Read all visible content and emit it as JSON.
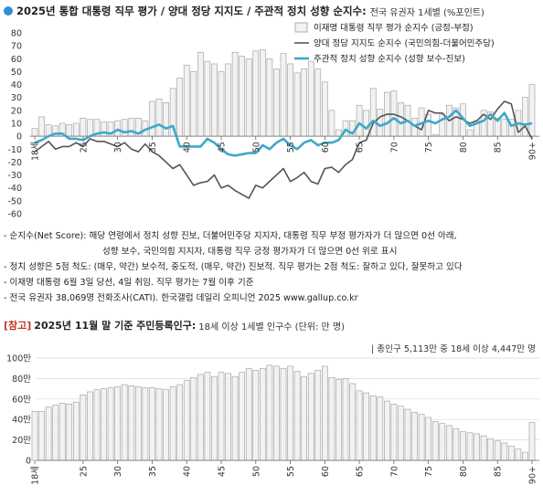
{
  "header": {
    "title": "2025년 통합 대통령 직무 평가 / 양대 정당 지지도 / 주관적 정치 성향 순지수:",
    "subtitle": "전국 유권자 1세별 (%포인트)"
  },
  "colors": {
    "bars": "#f2f2f2",
    "bar_stroke": "#9a9a9a",
    "party_line": "#555555",
    "ideology_line": "#3da9c8",
    "title_dot": "#2f8fd3",
    "ref_tag": "#c0392b"
  },
  "chart_data": [
    {
      "type": "bar",
      "title": "",
      "ylim": [
        -60,
        80
      ],
      "yticks": [
        80,
        70,
        60,
        50,
        40,
        30,
        20,
        10,
        0,
        -10,
        -20,
        -30,
        -40,
        -50,
        -60
      ],
      "xticks": [
        {
          "age": 18,
          "label": "18세"
        },
        {
          "age": 25,
          "label": "25"
        },
        {
          "age": 30,
          "label": "30"
        },
        {
          "age": 35,
          "label": "35"
        },
        {
          "age": 40,
          "label": "40"
        },
        {
          "age": 45,
          "label": "45"
        },
        {
          "age": 50,
          "label": "50"
        },
        {
          "age": 55,
          "label": "55"
        },
        {
          "age": 60,
          "label": "60"
        },
        {
          "age": 65,
          "label": "65"
        },
        {
          "age": 70,
          "label": "70"
        },
        {
          "age": 75,
          "label": "75"
        },
        {
          "age": 80,
          "label": "80"
        },
        {
          "age": 85,
          "label": "85"
        },
        {
          "age": 90,
          "label": "90+"
        }
      ],
      "ages": [
        18,
        19,
        20,
        21,
        22,
        23,
        24,
        25,
        26,
        27,
        28,
        29,
        30,
        31,
        32,
        33,
        34,
        35,
        36,
        37,
        38,
        39,
        40,
        41,
        42,
        43,
        44,
        45,
        46,
        47,
        48,
        49,
        50,
        51,
        52,
        53,
        54,
        55,
        56,
        57,
        58,
        59,
        60,
        61,
        62,
        63,
        64,
        65,
        66,
        67,
        68,
        69,
        70,
        71,
        72,
        73,
        74,
        75,
        76,
        77,
        78,
        79,
        80,
        81,
        82,
        83,
        84,
        85,
        86,
        87,
        88,
        89,
        90
      ],
      "series": [
        {
          "name": "이재명 대통령 직무 평가 순지수 (긍정-부정)",
          "kind": "bar",
          "values": [
            6,
            15,
            9,
            8,
            10,
            9,
            10,
            14,
            13,
            13,
            11,
            11,
            12,
            13,
            14,
            14,
            12,
            27,
            29,
            26,
            37,
            45,
            55,
            50,
            65,
            58,
            56,
            50,
            56,
            65,
            62,
            60,
            66,
            67,
            60,
            52,
            64,
            56,
            49,
            52,
            58,
            52,
            42,
            20,
            5,
            12,
            12,
            24,
            20,
            37,
            21,
            34,
            35,
            26,
            24,
            14,
            22,
            17,
            1,
            17,
            24,
            22,
            25,
            5,
            12,
            20,
            19,
            14,
            13,
            13,
            20,
            30,
            40
          ]
        },
        {
          "name": "양대 정당 지지도 순지수 (국민의힘-더불어민주당)",
          "kind": "line",
          "values": [
            -12,
            -8,
            -4,
            -10,
            -8,
            -8,
            -5,
            -8,
            -2,
            -4,
            -4,
            -6,
            -8,
            -5,
            -10,
            -12,
            -6,
            -12,
            -15,
            -20,
            -25,
            -22,
            -30,
            -38,
            -36,
            -35,
            -30,
            -40,
            -38,
            -42,
            -45,
            -48,
            -38,
            -40,
            -35,
            -30,
            -25,
            -35,
            -32,
            -28,
            -35,
            -37,
            -25,
            -24,
            -28,
            -22,
            -18,
            -5,
            -3,
            10,
            15,
            17,
            17,
            15,
            12,
            8,
            5,
            20,
            18,
            18,
            12,
            15,
            13,
            10,
            12,
            17,
            13,
            21,
            27,
            25,
            3,
            8,
            -2
          ]
        },
        {
          "name": "주관적 정치 성향 순지수 (성향 보수-진보)",
          "kind": "line",
          "values": [
            -5,
            -3,
            0,
            2,
            2,
            -2,
            -2,
            -3,
            0,
            2,
            3,
            2,
            5,
            3,
            4,
            2,
            5,
            7,
            9,
            6,
            8,
            -8,
            -8,
            -8,
            -8,
            -2,
            -5,
            -10,
            -14,
            -15,
            -14,
            -13,
            -13,
            -7,
            -10,
            -5,
            -2,
            -7,
            -10,
            -5,
            -3,
            -7,
            -5,
            -5,
            -3,
            5,
            2,
            10,
            6,
            12,
            8,
            10,
            14,
            10,
            12,
            8,
            10,
            12,
            10,
            13,
            15,
            20,
            14,
            8,
            10,
            12,
            17,
            12,
            18,
            8,
            10,
            9,
            10
          ]
        }
      ]
    },
    {
      "type": "bar",
      "title": "2025년 11월 말 기준 주민등록인구:",
      "ylim": [
        0,
        100
      ],
      "yticks": [
        "100만",
        "80만",
        "60만",
        "40만",
        "20만",
        "0"
      ],
      "xticks": [
        "18세",
        "25",
        "30",
        "35",
        "40",
        "45",
        "50",
        "55",
        "60",
        "65",
        "70",
        "75",
        "80",
        "85",
        "90+"
      ],
      "ages": [
        18,
        19,
        20,
        21,
        22,
        23,
        24,
        25,
        26,
        27,
        28,
        29,
        30,
        31,
        32,
        33,
        34,
        35,
        36,
        37,
        38,
        39,
        40,
        41,
        42,
        43,
        44,
        45,
        46,
        47,
        48,
        49,
        50,
        51,
        52,
        53,
        54,
        55,
        56,
        57,
        58,
        59,
        60,
        61,
        62,
        63,
        64,
        65,
        66,
        67,
        68,
        69,
        70,
        71,
        72,
        73,
        74,
        75,
        76,
        77,
        78,
        79,
        80,
        81,
        82,
        83,
        84,
        85,
        86,
        87,
        88,
        89,
        90
      ],
      "values": [
        48,
        48,
        52,
        54,
        56,
        55,
        57,
        64,
        67,
        69,
        70,
        71,
        72,
        74,
        73,
        72,
        71,
        71,
        70,
        69,
        72,
        74,
        78,
        81,
        84,
        86,
        82,
        86,
        85,
        82,
        86,
        90,
        88,
        90,
        93,
        92,
        90,
        92,
        87,
        82,
        85,
        88,
        92,
        81,
        79,
        80,
        75,
        68,
        66,
        63,
        62,
        58,
        55,
        53,
        50,
        47,
        45,
        42,
        38,
        36,
        34,
        31,
        28,
        27,
        26,
        24,
        21,
        19,
        17,
        14,
        11,
        8,
        37
      ]
    }
  ],
  "legend": [
    "이재명 대통령 직무 평가 순지수 (긍정-부정)",
    "양대 정당 지지도 순지수 (국민의힘-더불어민주당)",
    "주관적 정치 성향 순지수 (성향 보수-진보)"
  ],
  "notes": [
    "- 순지수(Net Score): 해당 연령에서 정치 성향 진보, 더불어민주당 지지자, 대통령 직무 부정 평가자가 더 많으면 0선 아래,",
    "성향 보수, 국민의힘 지지자, 대통령 직무 긍정 평가자가 더 많으면 0선 위로 표시",
    "- 정치 성향은 5점 척도: (매우, 약간) 보수적, 중도적, (매우, 약간) 진보적. 직무 평가는 2점 척도: 잘하고 있다, 잘못하고 있다",
    "- 이재명 대통령 6월 3일 당선, 4일 취임. 직무 평가는 7월 이후 기준",
    "- 전국 유권자 38,069명 전화조사(CATI). 한국갤럽 데일리 오피니언 2025 www.gallup.co.kr"
  ],
  "reference": {
    "tag": "[참고]",
    "title": "2025년 11월 말 기준 주민등록인구:",
    "subtitle": "18세 이상 1세별 인구수 (단위: 만 명)",
    "total": "| 총인구 5,113만 중 18세 이상 4,447만 명"
  }
}
